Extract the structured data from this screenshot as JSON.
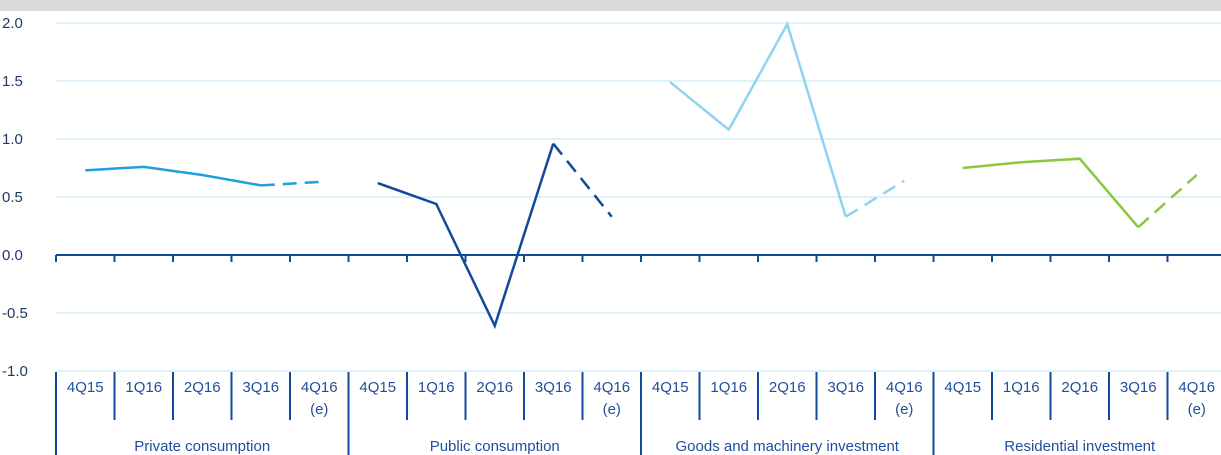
{
  "chart_data": {
    "type": "line",
    "ylim": [
      -1.0,
      2.0
    ],
    "yticks": [
      "2.0",
      "1.5",
      "1.0",
      "0.5",
      "0.0",
      "-0.5",
      "-1.0"
    ],
    "grid": true,
    "groups": [
      {
        "name": "Private consumption",
        "color": "#1fa0dc",
        "categories": [
          "4Q15",
          "1Q16",
          "2Q16",
          "3Q16",
          "4Q16"
        ],
        "category_notes": [
          "",
          "",
          "",
          "",
          "(e)"
        ],
        "values": [
          0.73,
          0.76,
          0.69,
          0.6,
          0.63
        ],
        "estimated_from_index": 3
      },
      {
        "name": "Public consumption",
        "color": "#114a9a",
        "categories": [
          "4Q15",
          "1Q16",
          "2Q16",
          "3Q16",
          "4Q16"
        ],
        "category_notes": [
          "",
          "",
          "",
          "",
          "(e)"
        ],
        "values": [
          0.62,
          0.44,
          -0.61,
          0.96,
          0.33
        ],
        "estimated_from_index": 3
      },
      {
        "name": "Goods and machinery investment",
        "color": "#8fd3f1",
        "categories": [
          "4Q15",
          "1Q16",
          "2Q16",
          "3Q16",
          "4Q16"
        ],
        "category_notes": [
          "",
          "",
          "",
          "",
          "(e)"
        ],
        "values": [
          1.49,
          1.08,
          1.99,
          0.33,
          0.64
        ],
        "estimated_from_index": 3
      },
      {
        "name": "Residential investment",
        "color": "#8cc63f",
        "categories": [
          "4Q15",
          "1Q16",
          "2Q16",
          "3Q16",
          "4Q16"
        ],
        "category_notes": [
          "",
          "",
          "",
          "",
          "(e)"
        ],
        "values": [
          0.75,
          0.8,
          0.83,
          0.24,
          0.69
        ],
        "estimated_from_index": 3
      }
    ]
  }
}
